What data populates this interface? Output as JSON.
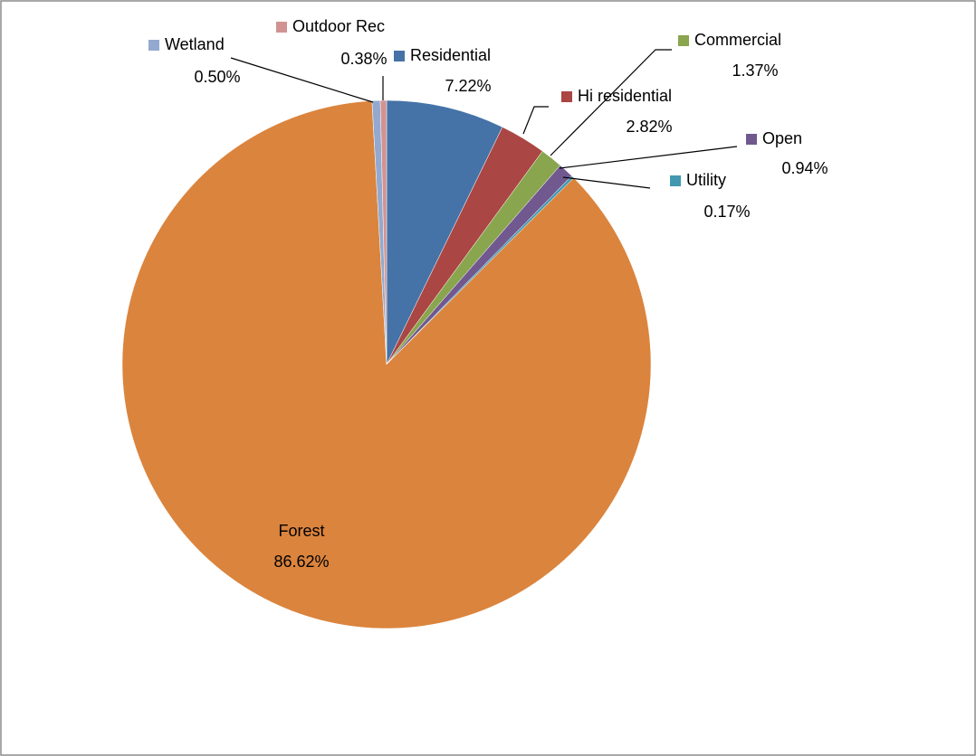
{
  "chart_data": {
    "type": "pie",
    "categories": [
      "Residential",
      "Hi residential",
      "Commercial",
      "Open",
      "Utility",
      "Forest",
      "Wetland",
      "Outdoor Rec"
    ],
    "values": [
      7.22,
      2.82,
      1.37,
      0.94,
      0.17,
      86.62,
      0.5,
      0.38
    ],
    "value_labels": [
      "7.22%",
      "2.82%",
      "1.37%",
      "0.94%",
      "0.17%",
      "86.62%",
      "0.50%",
      "0.38%"
    ],
    "colors": [
      "#4572a7",
      "#aa4643",
      "#89a54e",
      "#71588f",
      "#4198af",
      "#db843d",
      "#93a9cf",
      "#d19392"
    ]
  }
}
